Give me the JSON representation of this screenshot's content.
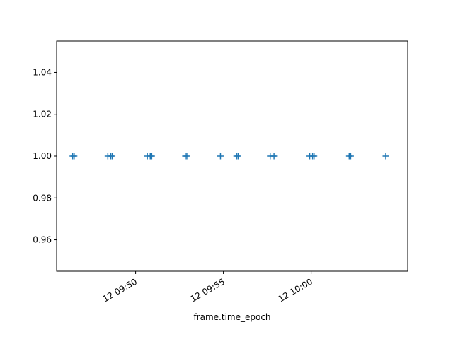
{
  "chart_data": {
    "type": "scatter",
    "title": "",
    "xlabel": "frame.time_epoch",
    "ylabel": "",
    "marker": "+",
    "color": "#1f77b4",
    "grid": false,
    "x_format": "time",
    "xlim": [
      "09:45:30",
      "10:05:30"
    ],
    "ylim": [
      0.945,
      1.055
    ],
    "xticks": [
      {
        "value": "09:50:00",
        "label": "12 09:50"
      },
      {
        "value": "09:55:00",
        "label": "12 09:55"
      },
      {
        "value": "10:00:00",
        "label": "12 10:00"
      }
    ],
    "yticks": [
      {
        "value": 0.96,
        "label": "0.96"
      },
      {
        "value": 0.98,
        "label": "0.98"
      },
      {
        "value": 1.0,
        "label": "1.00"
      },
      {
        "value": 1.02,
        "label": "1.02"
      },
      {
        "value": 1.04,
        "label": "1.04"
      }
    ],
    "points": [
      {
        "x": "09:46:25",
        "y": 1
      },
      {
        "x": "09:46:30",
        "y": 1
      },
      {
        "x": "09:48:25",
        "y": 1
      },
      {
        "x": "09:48:35",
        "y": 1
      },
      {
        "x": "09:48:40",
        "y": 1
      },
      {
        "x": "09:50:40",
        "y": 1
      },
      {
        "x": "09:50:50",
        "y": 1
      },
      {
        "x": "09:50:55",
        "y": 1
      },
      {
        "x": "09:52:50",
        "y": 1
      },
      {
        "x": "09:52:55",
        "y": 1
      },
      {
        "x": "09:54:50",
        "y": 1
      },
      {
        "x": "09:55:45",
        "y": 1
      },
      {
        "x": "09:55:50",
        "y": 1
      },
      {
        "x": "09:57:40",
        "y": 1
      },
      {
        "x": "09:57:50",
        "y": 1
      },
      {
        "x": "09:57:55",
        "y": 1
      },
      {
        "x": "09:59:55",
        "y": 1
      },
      {
        "x": "10:00:05",
        "y": 1
      },
      {
        "x": "10:00:10",
        "y": 1
      },
      {
        "x": "10:02:10",
        "y": 1
      },
      {
        "x": "10:02:15",
        "y": 1
      },
      {
        "x": "10:04:15",
        "y": 1
      }
    ]
  }
}
